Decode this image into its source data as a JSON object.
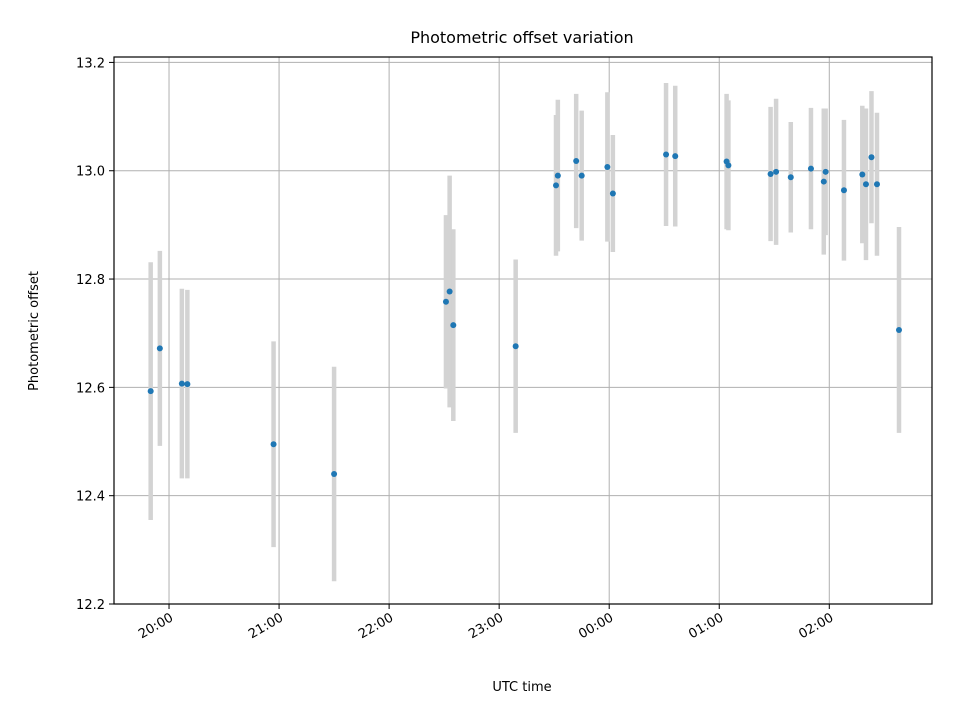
{
  "chart_data": {
    "type": "scatter",
    "title": "Photometric offset variation",
    "xlabel": "UTC time",
    "ylabel": "Photometric offset",
    "xlim": [
      "19:30",
      "02:56"
    ],
    "ylim": [
      12.2,
      13.21
    ],
    "x_ticks": [
      "20:00",
      "21:00",
      "22:00",
      "23:00",
      "00:00",
      "01:00",
      "02:00"
    ],
    "y_ticks": [
      12.2,
      12.4,
      12.6,
      12.8,
      13.0,
      13.2
    ],
    "grid": true,
    "point_color": "#1f77b4",
    "errorbar_color": "#d3d3d3",
    "points": [
      {
        "x": "19:50",
        "y": 12.593,
        "err": 0.238
      },
      {
        "x": "19:55",
        "y": 12.672,
        "err": 0.18
      },
      {
        "x": "20:07",
        "y": 12.607,
        "err": 0.175
      },
      {
        "x": "20:10",
        "y": 12.606,
        "err": 0.174
      },
      {
        "x": "20:57",
        "y": 12.495,
        "err": 0.19
      },
      {
        "x": "21:30",
        "y": 12.44,
        "err": 0.198
      },
      {
        "x": "22:31",
        "y": 12.758,
        "err": 0.16
      },
      {
        "x": "22:33",
        "y": 12.777,
        "err": 0.214
      },
      {
        "x": "22:35",
        "y": 12.715,
        "err": 0.177
      },
      {
        "x": "23:09",
        "y": 12.676,
        "err": 0.16
      },
      {
        "x": "23:31",
        "y": 12.973,
        "err": 0.13
      },
      {
        "x": "23:32",
        "y": 12.991,
        "err": 0.14
      },
      {
        "x": "23:42",
        "y": 13.018,
        "err": 0.124
      },
      {
        "x": "23:45",
        "y": 12.991,
        "err": 0.12
      },
      {
        "x": "23:59",
        "y": 13.007,
        "err": 0.138
      },
      {
        "x": "00:02",
        "y": 12.958,
        "err": 0.108
      },
      {
        "x": "00:31",
        "y": 13.03,
        "err": 0.132
      },
      {
        "x": "00:36",
        "y": 13.027,
        "err": 0.13
      },
      {
        "x": "01:04",
        "y": 13.017,
        "err": 0.125
      },
      {
        "x": "01:05",
        "y": 13.01,
        "err": 0.12
      },
      {
        "x": "01:28",
        "y": 12.994,
        "err": 0.124
      },
      {
        "x": "01:31",
        "y": 12.998,
        "err": 0.135
      },
      {
        "x": "01:39",
        "y": 12.988,
        "err": 0.102
      },
      {
        "x": "01:50",
        "y": 13.004,
        "err": 0.112
      },
      {
        "x": "01:57",
        "y": 12.98,
        "err": 0.135
      },
      {
        "x": "01:58",
        "y": 12.998,
        "err": 0.117
      },
      {
        "x": "02:08",
        "y": 12.964,
        "err": 0.13
      },
      {
        "x": "02:18",
        "y": 12.993,
        "err": 0.127
      },
      {
        "x": "02:20",
        "y": 12.975,
        "err": 0.14
      },
      {
        "x": "02:23",
        "y": 13.025,
        "err": 0.122
      },
      {
        "x": "02:26",
        "y": 12.975,
        "err": 0.132
      },
      {
        "x": "02:38",
        "y": 12.706,
        "err": 0.19
      }
    ]
  }
}
